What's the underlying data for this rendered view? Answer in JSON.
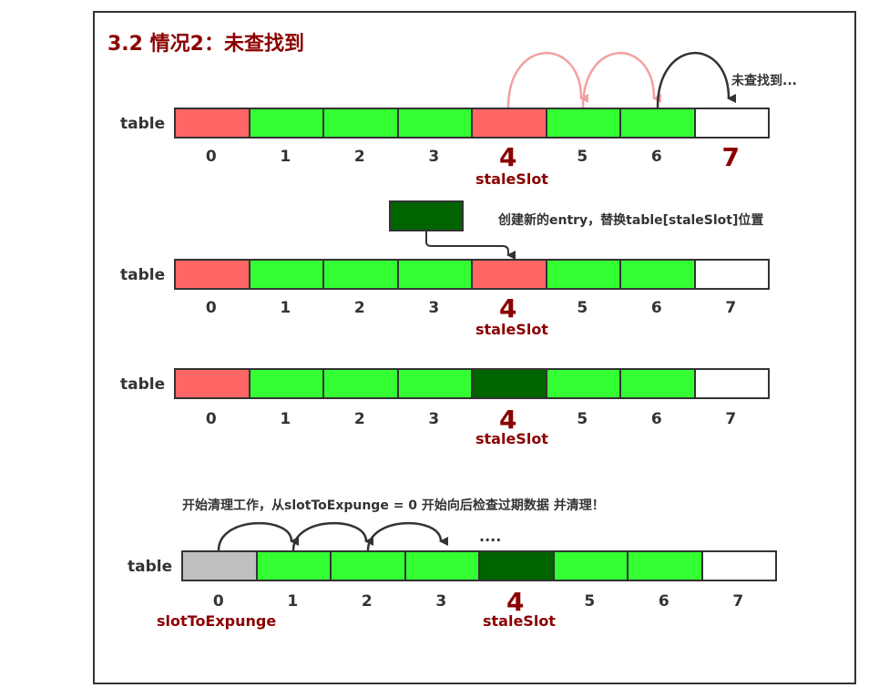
{
  "title": "3.2 情况2：未查找到",
  "table_label": "table",
  "rows": [
    {
      "label": "table",
      "colors": [
        "red",
        "green",
        "green",
        "green",
        "red",
        "green",
        "green",
        "white"
      ],
      "indices": [
        "0",
        "1",
        "2",
        "3",
        "4",
        "5",
        "6",
        "7"
      ],
      "big": [
        4,
        7
      ],
      "stale_label": "staleSlot",
      "note": "未查找到..."
    },
    {
      "label": "table",
      "colors": [
        "red",
        "green",
        "green",
        "green",
        "red",
        "green",
        "green",
        "white"
      ],
      "indices": [
        "0",
        "1",
        "2",
        "3",
        "4",
        "5",
        "6",
        "7"
      ],
      "big": [
        4
      ],
      "stale_label": "staleSlot",
      "note": "创建新的entry，替换table[staleSlot]位置"
    },
    {
      "label": "table",
      "colors": [
        "red",
        "green",
        "green",
        "green",
        "dark",
        "green",
        "green",
        "white"
      ],
      "indices": [
        "0",
        "1",
        "2",
        "3",
        "4",
        "5",
        "6",
        "7"
      ],
      "big": [
        4
      ],
      "stale_label": "staleSlot"
    },
    {
      "label": "table",
      "colors": [
        "gray",
        "green",
        "green",
        "green",
        "dark",
        "green",
        "green",
        "white"
      ],
      "indices": [
        "0",
        "1",
        "2",
        "3",
        "4",
        "5",
        "6",
        "7"
      ],
      "big": [
        4
      ],
      "stale_label": "staleSlot",
      "expunge_label": "slotToExpunge",
      "note": "开始清理工作，从slotToExpunge = 0 开始向后检查过期数据 并清理！",
      "dots": "...."
    }
  ],
  "colors": {
    "red": "#ff6666",
    "green": "#33ff33",
    "dark": "#006400",
    "gray": "#bfbfbf",
    "white": "#ffffff",
    "title": "#8b0000"
  }
}
